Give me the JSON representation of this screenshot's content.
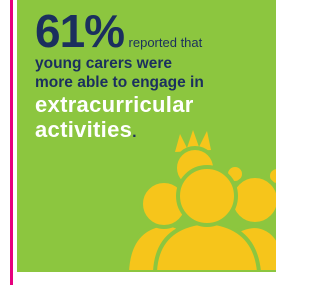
{
  "text": {
    "stat": "61%",
    "line1": "reported that",
    "line2": "young carers were",
    "line3": "more able to engage in",
    "line4": "extracurricular",
    "line5": "activities",
    "period": "."
  }
}
